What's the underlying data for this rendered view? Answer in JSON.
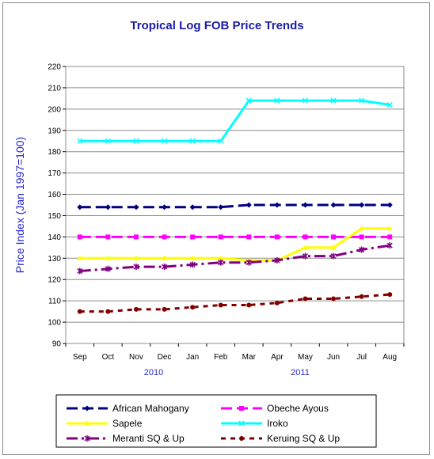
{
  "chart_data": {
    "type": "line",
    "title": "Tropical Log FOB Price Trends",
    "ylabel": "Price Index (Jan 1997=100)",
    "xlabel": "",
    "ylim": [
      90,
      220
    ],
    "yticks": [
      90,
      100,
      110,
      120,
      130,
      140,
      150,
      160,
      170,
      180,
      190,
      200,
      210,
      220
    ],
    "categories": [
      "Sep",
      "Oct",
      "Nov",
      "Dec",
      "Jan",
      "Feb",
      "Mar",
      "Apr",
      "May",
      "Jun",
      "Jul",
      "Aug"
    ],
    "year_labels": [
      "2010",
      "2011"
    ],
    "grid": true,
    "legend_position": "bottom",
    "series": [
      {
        "name": "African Mahogany",
        "color": "#000080",
        "marker": "diamond",
        "dash": "long",
        "values": [
          154,
          154,
          154,
          154,
          154,
          154,
          155,
          155,
          155,
          155,
          155,
          155
        ]
      },
      {
        "name": "Obeche Ayous",
        "color": "#ff00ff",
        "marker": "square",
        "dash": "long",
        "values": [
          140,
          140,
          140,
          140,
          140,
          140,
          140,
          140,
          140,
          140,
          140,
          140
        ]
      },
      {
        "name": "Sapele",
        "color": "#ffff00",
        "marker": "triangle",
        "dash": "solid",
        "values": [
          130,
          130,
          130,
          130,
          130,
          130,
          129,
          129,
          135,
          135,
          144,
          144
        ]
      },
      {
        "name": "Iroko",
        "color": "#00ffff",
        "marker": "x",
        "dash": "solid",
        "values": [
          185,
          185,
          185,
          185,
          185,
          185,
          204,
          204,
          204,
          204,
          204,
          202
        ]
      },
      {
        "name": "Meranti SQ & Up",
        "color": "#800080",
        "marker": "star",
        "dash": "dashdot",
        "values": [
          124,
          125,
          126,
          126,
          127,
          128,
          128,
          129,
          131,
          131,
          134,
          136
        ]
      },
      {
        "name": "Keruing SQ & Up",
        "color": "#800000",
        "marker": "circle",
        "dash": "short",
        "values": [
          105,
          105,
          106,
          106,
          107,
          108,
          108,
          109,
          111,
          111,
          112,
          113
        ]
      }
    ]
  }
}
